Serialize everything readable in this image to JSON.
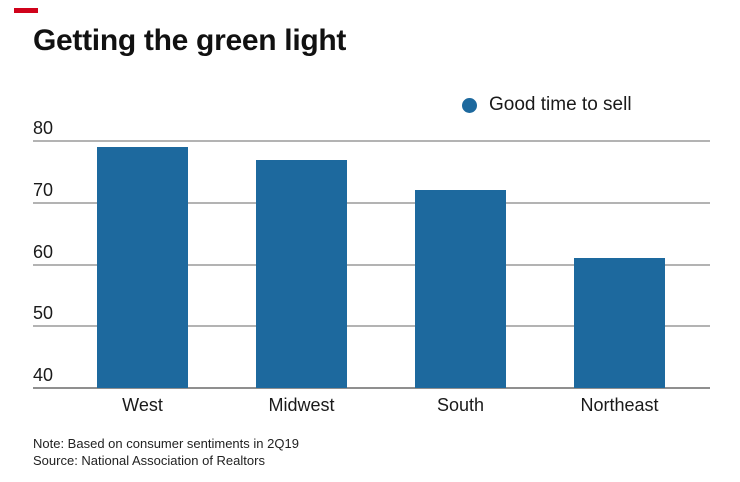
{
  "header": {
    "title": "Getting the green light",
    "accent_dash_color": "#d0021b"
  },
  "legend": {
    "label": "Good time to sell",
    "dot_color": "#1d699e"
  },
  "chart_data": {
    "type": "bar",
    "title": "Getting the green light",
    "categories": [
      "West",
      "Midwest",
      "South",
      "Northeast"
    ],
    "series": [
      {
        "name": "Good time to sell",
        "values": [
          79,
          77,
          72,
          61
        ]
      }
    ],
    "xlabel": "",
    "ylabel": "",
    "ylim": [
      40,
      80
    ],
    "yticks": [
      40,
      50,
      60,
      70,
      80
    ],
    "grid": true,
    "legend_position": "top-right",
    "bar_color": "#1d699e",
    "gridline_color": "#b3b3b3",
    "axis_line_color": "#8f8f8f"
  },
  "footer": {
    "note": "Note: Based on consumer sentiments in 2Q19",
    "source": "Source: National Association of Realtors"
  }
}
